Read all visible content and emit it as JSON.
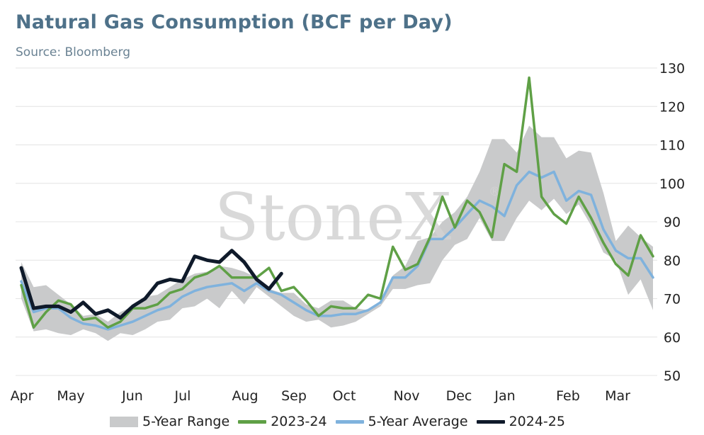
{
  "header": {
    "title": "Natural Gas Consumption (BCF per Day)",
    "source": "Source: Bloomberg"
  },
  "watermark": "StoneX",
  "watermark_mark": "®",
  "legend": {
    "range": "5-Year Range",
    "s2324": "2023-24",
    "avg": "5-Year Average",
    "s2425": "2024-25"
  },
  "colors": {
    "range": "#c9cacb",
    "s2324": "#5fa046",
    "avg": "#7fb2dd",
    "s2425": "#0f1a2a",
    "title": "#4e7189"
  },
  "chart_data": {
    "type": "line",
    "title": "Natural Gas Consumption (BCF per Day)",
    "subtitle": "Source: Bloomberg",
    "x_unit": "week index (52 weeks, April to March)",
    "x_tick_labels": [
      "Apr",
      "May",
      "Jun",
      "Jul",
      "Aug",
      "Sep",
      "Oct",
      "Nov",
      "Dec",
      "Jan",
      "Feb",
      "Mar"
    ],
    "x_tick_weeks": [
      0,
      10,
      23,
      33,
      43,
      52,
      62,
      75,
      86,
      96,
      107,
      117
    ],
    "x_range": [
      0,
      52
    ],
    "ylim": [
      50,
      130
    ],
    "yticks": [
      50,
      60,
      70,
      80,
      90,
      100,
      110,
      120,
      130
    ],
    "y_axis_side": "right",
    "grid": "horizontal",
    "legend_position": "bottom",
    "series": [
      {
        "name": "2023-24",
        "x": [
          0,
          1,
          2,
          3,
          4,
          5,
          6,
          7,
          8,
          9,
          10,
          11,
          12,
          13,
          14,
          15,
          16,
          17,
          18,
          19,
          20,
          21,
          22,
          23,
          24,
          25,
          26,
          27,
          28,
          29,
          30,
          31,
          32,
          33,
          34,
          35,
          36,
          37,
          38,
          39,
          40,
          41,
          42,
          43,
          44,
          45,
          46,
          47,
          48,
          49,
          50,
          51
        ],
        "values": [
          73.5,
          62.5,
          66.5,
          69.5,
          68.5,
          64.5,
          65,
          62.5,
          64,
          67.5,
          67.5,
          68.5,
          71.5,
          72.5,
          75.5,
          76.5,
          78.5,
          75.5,
          75.5,
          75.5,
          78,
          72,
          73,
          69.5,
          65.5,
          68,
          67.5,
          67.5,
          71,
          70,
          83.5,
          77.5,
          79,
          86,
          96.5,
          88.5,
          95.5,
          92.5,
          86,
          105,
          103,
          127.5,
          96.5,
          92,
          89.5,
          96.5,
          91,
          84.5,
          79,
          76,
          86.5,
          81
        ]
      },
      {
        "name": "5-Year Average",
        "x": [
          0,
          1,
          2,
          3,
          4,
          5,
          6,
          7,
          8,
          9,
          10,
          11,
          12,
          13,
          14,
          15,
          16,
          17,
          18,
          19,
          20,
          21,
          22,
          23,
          24,
          25,
          26,
          27,
          28,
          29,
          30,
          31,
          32,
          33,
          34,
          35,
          36,
          37,
          38,
          39,
          40,
          41,
          42,
          43,
          44,
          45,
          46,
          47,
          48,
          49,
          50,
          51
        ],
        "values": [
          74.5,
          66.5,
          67.5,
          67.5,
          65,
          63.5,
          63,
          62,
          63,
          64,
          65.5,
          67,
          68,
          70.5,
          72,
          73,
          73.5,
          74,
          72,
          74,
          72,
          71,
          69,
          67,
          65.5,
          65.5,
          66,
          66,
          67,
          69,
          75.5,
          75.5,
          78.5,
          85.5,
          85.5,
          88.5,
          92,
          95.5,
          94,
          91.5,
          99.5,
          103,
          101.5,
          103,
          95.5,
          98,
          97,
          88,
          82.5,
          80.5,
          80.5,
          75.5
        ]
      },
      {
        "name": "2024-25",
        "x": [
          0,
          1,
          2,
          3,
          4,
          5,
          6,
          7,
          8,
          9,
          10,
          11,
          12,
          13,
          14,
          15,
          16,
          17,
          18,
          19,
          20,
          21
        ],
        "values": [
          78,
          67.5,
          68,
          68,
          66.5,
          69,
          66,
          67,
          65,
          68,
          70,
          74,
          75,
          74.5,
          81,
          80,
          79.5,
          82.5,
          79.5,
          75,
          72.5,
          76.5
        ]
      }
    ],
    "range_band": {
      "name": "5-Year Range",
      "x": [
        0,
        1,
        2,
        3,
        4,
        5,
        6,
        7,
        8,
        9,
        10,
        11,
        12,
        13,
        14,
        15,
        16,
        17,
        18,
        19,
        20,
        21,
        22,
        23,
        24,
        25,
        26,
        27,
        28,
        29,
        30,
        31,
        32,
        33,
        34,
        35,
        36,
        37,
        38,
        39,
        40,
        41,
        42,
        43,
        44,
        45,
        46,
        47,
        48,
        49,
        50,
        51
      ],
      "high": [
        79.5,
        73,
        73.5,
        71,
        68.5,
        65.5,
        66,
        64,
        66.5,
        68,
        70.5,
        71,
        73,
        75,
        76.5,
        77,
        78.5,
        78,
        77,
        75.5,
        72.5,
        71.5,
        71.5,
        68.5,
        67.5,
        69.5,
        69.5,
        67.5,
        67,
        68.5,
        76,
        78.5,
        85,
        86,
        90,
        92.5,
        96.5,
        103,
        111.5,
        111.5,
        108,
        115,
        112,
        112,
        106.5,
        108.5,
        108,
        97.5,
        85,
        89,
        86,
        83.5
      ],
      "low": [
        70,
        61.5,
        62,
        61,
        60.5,
        62,
        61,
        59,
        61,
        60.5,
        62,
        64,
        64.5,
        67.5,
        68,
        70,
        67.5,
        72,
        68.5,
        73,
        70.5,
        68,
        65.5,
        64,
        64.5,
        62.5,
        63,
        64,
        66,
        68,
        72.5,
        72.5,
        73.5,
        74,
        80,
        84,
        85.5,
        91,
        85,
        85,
        91,
        95.5,
        93,
        96,
        92,
        94.5,
        89,
        82,
        80,
        71,
        75,
        67
      ]
    }
  }
}
